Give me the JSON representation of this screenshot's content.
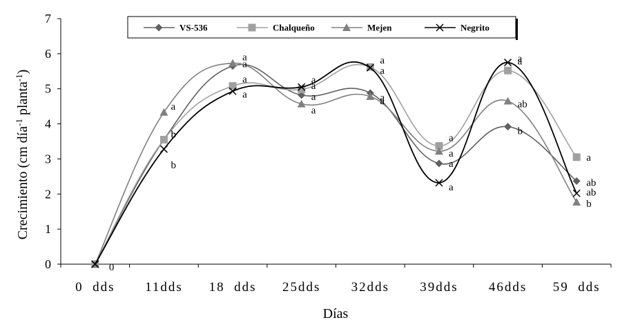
{
  "chart_data": {
    "type": "line",
    "title": "",
    "xlabel": "Días",
    "ylabel": "Crecimiento (cm día-1 planta-1)",
    "ylabel_parts": {
      "a": "Crecimiento (cm día",
      "sup1": "-1",
      "b": " planta",
      "sup2": "-1",
      "c": ")"
    },
    "ylim": [
      0,
      7
    ],
    "yticks": [
      "0",
      "1",
      "2",
      "3",
      "4",
      "5",
      "6",
      "7"
    ],
    "categories": [
      "0  dds",
      "11dds",
      "18  dds",
      "25dds",
      "32dds",
      "39dds",
      "46dds",
      "59  dds"
    ],
    "legend_position": "top",
    "grid": false,
    "series": [
      {
        "name": "VS-536",
        "color": "#606060",
        "marker": "diamond",
        "values": [
          0,
          3.55,
          5.65,
          4.82,
          4.88,
          2.87,
          3.92,
          2.37
        ],
        "labels": [
          "",
          "b",
          "a",
          "a",
          "a",
          "a",
          "b",
          "ab"
        ]
      },
      {
        "name": "Chalqueño",
        "color": "#a0a0a0",
        "marker": "square",
        "values": [
          0,
          3.55,
          5.08,
          4.98,
          5.62,
          3.37,
          5.52,
          3.05
        ],
        "labels": [
          "",
          "b",
          "a",
          "a",
          "a",
          "a",
          "a",
          "a"
        ]
      },
      {
        "name": "Mejen",
        "color": "#808080",
        "marker": "triangle",
        "values": [
          0,
          4.33,
          5.73,
          4.57,
          4.78,
          3.22,
          4.65,
          1.77
        ],
        "labels": [
          "",
          "a",
          "a",
          "a",
          "a",
          "a",
          "ab",
          "b"
        ]
      },
      {
        "name": "Negrito",
        "color": "#000000",
        "marker": "x",
        "values": [
          0,
          3.28,
          4.93,
          5.05,
          5.6,
          2.32,
          5.75,
          2.02
        ],
        "labels": [
          "0",
          "b",
          "a",
          "a",
          "a",
          "a",
          "a",
          "ab"
        ]
      }
    ]
  }
}
